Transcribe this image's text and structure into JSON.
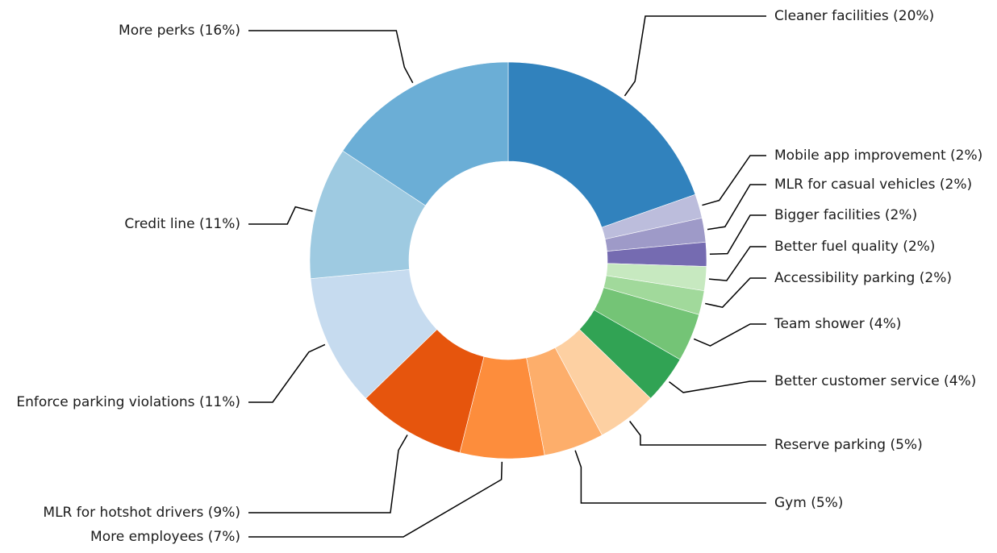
{
  "chart_data": {
    "type": "pie",
    "donut": true,
    "start_direction": "clockwise from top",
    "slices": [
      {
        "label": "Cleaner facilities (20%)",
        "value": 20,
        "color": "#3182bd"
      },
      {
        "label": "Mobile app improvement (2%)",
        "value": 2,
        "color": "#bcbddc"
      },
      {
        "label": "MLR for casual vehicles (2%)",
        "value": 2,
        "color": "#9e9ac8"
      },
      {
        "label": "Bigger facilities (2%)",
        "value": 2,
        "color": "#756bb1"
      },
      {
        "label": "Better fuel quality (2%)",
        "value": 2,
        "color": "#c7e9c0"
      },
      {
        "label": "Accessibility parking (2%)",
        "value": 2,
        "color": "#a1d99b"
      },
      {
        "label": "Team shower (4%)",
        "value": 4,
        "color": "#74c476"
      },
      {
        "label": "Better customer service (4%)",
        "value": 4,
        "color": "#31a354"
      },
      {
        "label": "Reserve parking (5%)",
        "value": 5,
        "color": "#fdd0a2"
      },
      {
        "label": "Gym (5%)",
        "value": 5,
        "color": "#fdae6b"
      },
      {
        "label": "More employees (7%)",
        "value": 7,
        "color": "#fd8d3c"
      },
      {
        "label": "MLR for hotshot drivers (9%)",
        "value": 9,
        "color": "#e6550d"
      },
      {
        "label": "Enforce parking violations (11%)",
        "value": 11,
        "color": "#c6dbef"
      },
      {
        "label": "Credit line (11%)",
        "value": 11,
        "color": "#9ecae1"
      },
      {
        "label": "More perks (16%)",
        "value": 16,
        "color": "#6baed6"
      }
    ]
  }
}
